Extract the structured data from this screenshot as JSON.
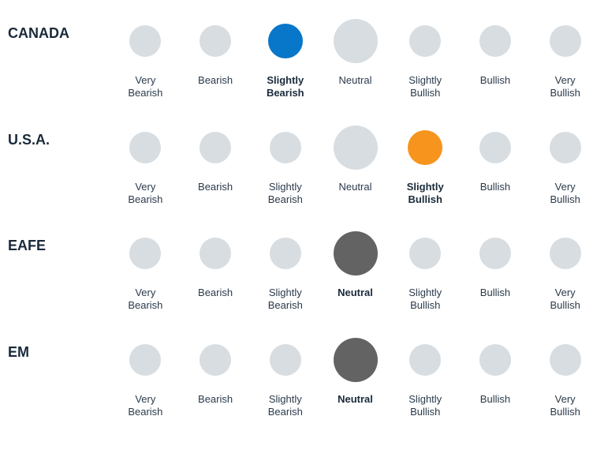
{
  "chart": {
    "type": "dot-scale",
    "background_color": "#ffffff",
    "label_fontsize": 13,
    "row_label_fontsize": 18,
    "default_dot_color": "#d7dde1",
    "scale_labels": [
      "Very\nBearish",
      "Bearish",
      "Slightly\nBearish",
      "Neutral",
      "Slightly\nBullish",
      "Bullish",
      "Very\nBullish"
    ],
    "dot_diameters": [
      40,
      40,
      40,
      56,
      40,
      40,
      40
    ],
    "rows": [
      {
        "label": "CANADA",
        "selected_index": 2,
        "selected_color": "#0876c9",
        "selected_diameter": 44
      },
      {
        "label": "U.S.A.",
        "selected_index": 4,
        "selected_color": "#f7941d",
        "selected_diameter": 44
      },
      {
        "label": "EAFE",
        "selected_index": 3,
        "selected_color": "#636363",
        "selected_diameter": 56
      },
      {
        "label": "EM",
        "selected_index": 3,
        "selected_color": "#636363",
        "selected_diameter": 56
      }
    ]
  }
}
